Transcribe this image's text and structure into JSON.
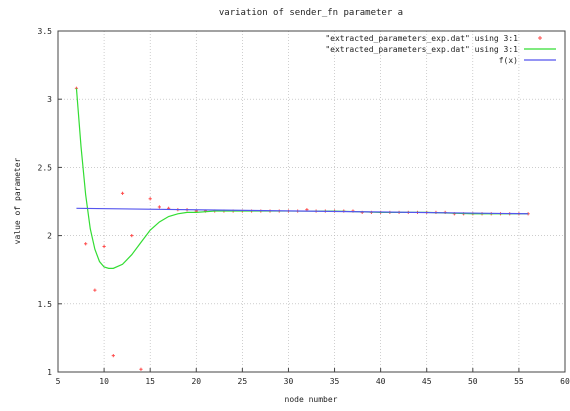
{
  "chart_data": {
    "type": "scatter",
    "title": "variation of sender_fn parameter a",
    "xlabel": "node number",
    "ylabel": "value of parameter",
    "xlim": [
      5,
      60
    ],
    "ylim": [
      1,
      3.5
    ],
    "x_ticks": [
      "5",
      "10",
      "15",
      "20",
      "25",
      "30",
      "35",
      "40",
      "45",
      "50",
      "55",
      "60"
    ],
    "y_ticks": [
      "1",
      "1.5",
      "2",
      "2.5",
      "3",
      "3.5"
    ],
    "grid": true,
    "legend_position": "top-right",
    "series": [
      {
        "name": "\"extracted_parameters_exp.dat\" using 3:1",
        "kind": "points",
        "color": "#ff4d4d",
        "x": [
          7,
          8,
          9,
          10,
          11,
          12,
          13,
          14,
          15,
          16,
          17,
          18,
          19,
          20,
          21,
          22,
          23,
          24,
          25,
          26,
          27,
          28,
          29,
          30,
          31,
          32,
          33,
          34,
          35,
          36,
          37,
          38,
          39,
          40,
          41,
          42,
          43,
          44,
          45,
          46,
          47,
          48,
          49,
          50,
          51,
          52,
          53,
          54,
          55,
          56
        ],
        "y": [
          3.08,
          1.94,
          1.6,
          1.92,
          1.12,
          2.31,
          2.0,
          1.02,
          2.27,
          2.21,
          2.2,
          2.19,
          2.19,
          2.18,
          2.18,
          2.18,
          2.18,
          2.18,
          2.18,
          2.18,
          2.18,
          2.18,
          2.18,
          2.18,
          2.18,
          2.19,
          2.18,
          2.18,
          2.18,
          2.18,
          2.18,
          2.17,
          2.17,
          2.17,
          2.17,
          2.17,
          2.17,
          2.17,
          2.17,
          2.17,
          2.17,
          2.16,
          2.16,
          2.16,
          2.16,
          2.16,
          2.16,
          2.16,
          2.16,
          2.16
        ]
      },
      {
        "name": "\"extracted_parameters_exp.dat\" using 3:1",
        "kind": "smooth-line",
        "color": "#33dd33",
        "x": [
          7,
          7.5,
          8,
          8.5,
          9,
          9.5,
          10,
          10.5,
          11,
          12,
          13,
          14,
          15,
          16,
          17,
          18,
          19,
          20,
          22,
          25,
          30,
          35,
          40,
          45,
          50,
          56
        ],
        "y": [
          3.08,
          2.65,
          2.3,
          2.05,
          1.9,
          1.81,
          1.77,
          1.76,
          1.76,
          1.79,
          1.86,
          1.95,
          2.04,
          2.1,
          2.14,
          2.16,
          2.17,
          2.17,
          2.18,
          2.18,
          2.18,
          2.18,
          2.17,
          2.17,
          2.16,
          2.16
        ]
      },
      {
        "name": "f(x)",
        "kind": "line",
        "color": "#5555ee",
        "x": [
          7,
          56
        ],
        "y": [
          2.2,
          2.16
        ]
      }
    ]
  }
}
